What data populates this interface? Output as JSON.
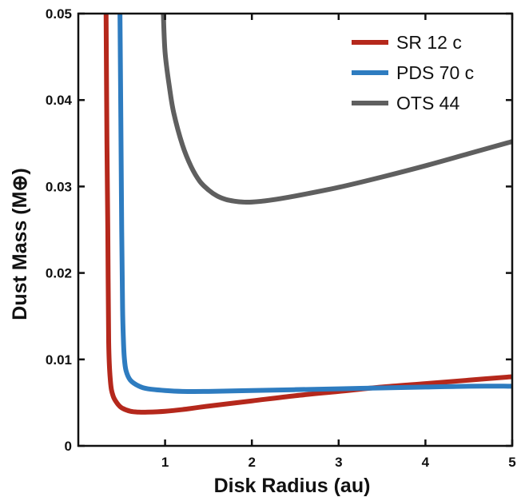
{
  "chart_data": {
    "type": "line",
    "title": "",
    "xlabel": "Disk Radius (au)",
    "ylabel": "Dust Mass (M⊕)",
    "xlim": [
      0,
      5
    ],
    "ylim": [
      0,
      0.05
    ],
    "xticks": [
      1,
      2,
      3,
      4,
      5
    ],
    "xtick_labels": [
      "1",
      "2",
      "3",
      "4",
      "5"
    ],
    "yticks": [
      0,
      0.01,
      0.02,
      0.03,
      0.04,
      0.05
    ],
    "ytick_labels": [
      "0",
      "0.01",
      "0.02",
      "0.03",
      "0.04",
      "0.05"
    ],
    "grid": false,
    "legend_position": "top-right",
    "series": [
      {
        "name": "SR 12 c",
        "color": "#b5281c",
        "x": [
          0.32,
          0.33,
          0.34,
          0.35,
          0.37,
          0.4,
          0.45,
          0.5,
          0.6,
          0.7,
          0.8,
          1.0,
          1.2,
          1.5,
          2.0,
          2.5,
          3.0,
          3.5,
          4.0,
          4.5,
          5.0
        ],
        "y": [
          0.05,
          0.035,
          0.025,
          0.012,
          0.0075,
          0.0058,
          0.0049,
          0.0044,
          0.004,
          0.0039,
          0.0039,
          0.004,
          0.0042,
          0.0046,
          0.0052,
          0.0058,
          0.0063,
          0.0068,
          0.0072,
          0.0076,
          0.008
        ]
      },
      {
        "name": "PDS 70 c",
        "color": "#2e7cc0",
        "x": [
          0.48,
          0.49,
          0.5,
          0.51,
          0.52,
          0.53,
          0.55,
          0.6,
          0.7,
          0.8,
          1.0,
          1.2,
          1.5,
          2.0,
          2.5,
          3.0,
          3.5,
          4.0,
          4.5,
          5.0
        ],
        "y": [
          0.05,
          0.038,
          0.025,
          0.016,
          0.0122,
          0.0102,
          0.0087,
          0.0076,
          0.0069,
          0.0066,
          0.0064,
          0.0063,
          0.0063,
          0.0064,
          0.0065,
          0.0066,
          0.0067,
          0.0068,
          0.0069,
          0.0069
        ]
      },
      {
        "name": "OTS 44",
        "color": "#5f5f5f",
        "x": [
          0.98,
          1.0,
          1.05,
          1.1,
          1.2,
          1.3,
          1.4,
          1.5,
          1.6,
          1.7,
          1.8,
          1.9,
          2.0,
          2.2,
          2.5,
          3.0,
          3.5,
          4.0,
          4.5,
          5.0
        ],
        "y": [
          0.05,
          0.0455,
          0.0415,
          0.0385,
          0.0348,
          0.0323,
          0.0306,
          0.0296,
          0.0289,
          0.0285,
          0.0283,
          0.0282,
          0.0282,
          0.0284,
          0.0289,
          0.0299,
          0.0311,
          0.0324,
          0.0338,
          0.0352
        ]
      }
    ]
  }
}
